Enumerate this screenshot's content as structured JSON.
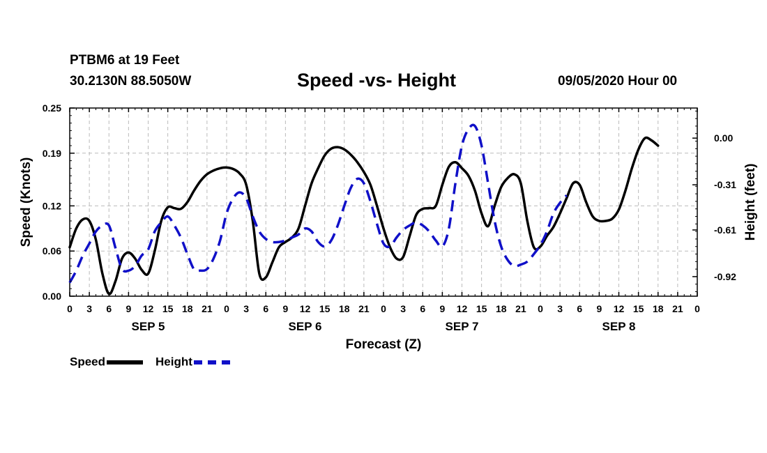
{
  "header": {
    "station": "PTBM6 at 19 Feet",
    "coords": "30.2130N 88.5050W",
    "title": "Speed -vs- Height",
    "datetime": "09/05/2020 Hour 00"
  },
  "legend": {
    "speed": "Speed",
    "height": "Height"
  },
  "colors": {
    "speed": "#000000",
    "height": "#1010c8",
    "grid": "#bbbbbb"
  },
  "chart_data": {
    "type": "line",
    "title": "Speed -vs- Height",
    "xlabel": "Forecast (Z)",
    "ylabel": "Speed (Knots)",
    "y2label": "Height (feet)",
    "xlim": [
      0,
      96
    ],
    "ylim": [
      0,
      0.25
    ],
    "y2lim": [
      -1.05,
      0.2
    ],
    "x_tick_hours": [
      0,
      3,
      6,
      9,
      12,
      15,
      18,
      21,
      24,
      27,
      30,
      33,
      36,
      39,
      42,
      45,
      48,
      51,
      54,
      57,
      60,
      63,
      66,
      69,
      72,
      75,
      78,
      81,
      84,
      87,
      90,
      93,
      96
    ],
    "x_tick_labels": [
      "0",
      "3",
      "6",
      "9",
      "12",
      "15",
      "18",
      "21",
      "0",
      "3",
      "6",
      "9",
      "12",
      "15",
      "18",
      "21",
      "0",
      "3",
      "6",
      "9",
      "12",
      "15",
      "18",
      "21",
      "0",
      "3",
      "6",
      "9",
      "12",
      "15",
      "18",
      "21",
      "0"
    ],
    "day_labels": [
      {
        "hour": 12,
        "label": "SEP 5"
      },
      {
        "hour": 36,
        "label": "SEP 6"
      },
      {
        "hour": 60,
        "label": "SEP 7"
      },
      {
        "hour": 84,
        "label": "SEP 8"
      }
    ],
    "y_ticks": [
      0.0,
      0.06,
      0.12,
      0.19,
      0.25
    ],
    "y_tick_labels": [
      "0.00",
      "0.06",
      "0.12",
      "0.19",
      "0.25"
    ],
    "y2_ticks": [
      0.0,
      -0.31,
      -0.61,
      -0.92
    ],
    "y2_tick_labels": [
      "0.00",
      "-0.31",
      "-0.61",
      "-0.92"
    ],
    "series": [
      {
        "name": "Speed",
        "axis": "left",
        "style": "solid",
        "points": [
          [
            0,
            0.065
          ],
          [
            1,
            0.09
          ],
          [
            2,
            0.102
          ],
          [
            3,
            0.1
          ],
          [
            4,
            0.075
          ],
          [
            5,
            0.03
          ],
          [
            6,
            0.003
          ],
          [
            7,
            0.02
          ],
          [
            8,
            0.05
          ],
          [
            9,
            0.058
          ],
          [
            10,
            0.05
          ],
          [
            11,
            0.035
          ],
          [
            12,
            0.03
          ],
          [
            13,
            0.06
          ],
          [
            14,
            0.1
          ],
          [
            15,
            0.118
          ],
          [
            16,
            0.117
          ],
          [
            17,
            0.116
          ],
          [
            18,
            0.125
          ],
          [
            19,
            0.14
          ],
          [
            20,
            0.153
          ],
          [
            21,
            0.162
          ],
          [
            22,
            0.167
          ],
          [
            23,
            0.17
          ],
          [
            24,
            0.171
          ],
          [
            25,
            0.169
          ],
          [
            26,
            0.163
          ],
          [
            27,
            0.148
          ],
          [
            28,
            0.1
          ],
          [
            29,
            0.03
          ],
          [
            30,
            0.025
          ],
          [
            31,
            0.045
          ],
          [
            32,
            0.065
          ],
          [
            33,
            0.072
          ],
          [
            34,
            0.078
          ],
          [
            35,
            0.09
          ],
          [
            36,
            0.12
          ],
          [
            37,
            0.15
          ],
          [
            38,
            0.17
          ],
          [
            39,
            0.187
          ],
          [
            40,
            0.196
          ],
          [
            41,
            0.198
          ],
          [
            42,
            0.195
          ],
          [
            43,
            0.188
          ],
          [
            44,
            0.178
          ],
          [
            45,
            0.165
          ],
          [
            46,
            0.148
          ],
          [
            47,
            0.12
          ],
          [
            48,
            0.09
          ],
          [
            49,
            0.065
          ],
          [
            50,
            0.05
          ],
          [
            51,
            0.052
          ],
          [
            52,
            0.08
          ],
          [
            53,
            0.108
          ],
          [
            54,
            0.116
          ],
          [
            55,
            0.117
          ],
          [
            56,
            0.12
          ],
          [
            57,
            0.148
          ],
          [
            58,
            0.172
          ],
          [
            59,
            0.178
          ],
          [
            60,
            0.17
          ],
          [
            61,
            0.16
          ],
          [
            62,
            0.14
          ],
          [
            63,
            0.11
          ],
          [
            64,
            0.093
          ],
          [
            65,
            0.12
          ],
          [
            66,
            0.145
          ],
          [
            67,
            0.157
          ],
          [
            68,
            0.162
          ],
          [
            69,
            0.15
          ],
          [
            70,
            0.1
          ],
          [
            71,
            0.065
          ],
          [
            72,
            0.066
          ],
          [
            73,
            0.08
          ],
          [
            74,
            0.092
          ],
          [
            75,
            0.11
          ],
          [
            76,
            0.13
          ],
          [
            77,
            0.15
          ],
          [
            78,
            0.148
          ],
          [
            79,
            0.125
          ],
          [
            80,
            0.106
          ],
          [
            81,
            0.1
          ],
          [
            82,
            0.1
          ],
          [
            83,
            0.103
          ],
          [
            84,
            0.115
          ],
          [
            85,
            0.14
          ],
          [
            86,
            0.17
          ],
          [
            87,
            0.195
          ],
          [
            88,
            0.21
          ],
          [
            89,
            0.207
          ],
          [
            90,
            0.2
          ]
        ]
      },
      {
        "name": "Height",
        "axis": "right",
        "style": "dashed",
        "points": [
          [
            0,
            -0.96
          ],
          [
            1,
            -0.88
          ],
          [
            2,
            -0.78
          ],
          [
            3,
            -0.7
          ],
          [
            4,
            -0.62
          ],
          [
            5,
            -0.58
          ],
          [
            6,
            -0.58
          ],
          [
            7,
            -0.73
          ],
          [
            8,
            -0.87
          ],
          [
            9,
            -0.88
          ],
          [
            10,
            -0.85
          ],
          [
            11,
            -0.78
          ],
          [
            12,
            -0.74
          ],
          [
            13,
            -0.62
          ],
          [
            14,
            -0.56
          ],
          [
            15,
            -0.52
          ],
          [
            16,
            -0.58
          ],
          [
            17,
            -0.66
          ],
          [
            18,
            -0.77
          ],
          [
            19,
            -0.87
          ],
          [
            20,
            -0.88
          ],
          [
            21,
            -0.87
          ],
          [
            22,
            -0.8
          ],
          [
            23,
            -0.68
          ],
          [
            24,
            -0.5
          ],
          [
            25,
            -0.4
          ],
          [
            26,
            -0.36
          ],
          [
            27,
            -0.4
          ],
          [
            28,
            -0.52
          ],
          [
            29,
            -0.62
          ],
          [
            30,
            -0.67
          ],
          [
            31,
            -0.69
          ],
          [
            32,
            -0.69
          ],
          [
            33,
            -0.68
          ],
          [
            34,
            -0.66
          ],
          [
            35,
            -0.64
          ],
          [
            36,
            -0.6
          ],
          [
            37,
            -0.62
          ],
          [
            38,
            -0.69
          ],
          [
            39,
            -0.72
          ],
          [
            40,
            -0.68
          ],
          [
            41,
            -0.58
          ],
          [
            42,
            -0.45
          ],
          [
            43,
            -0.33
          ],
          [
            44,
            -0.27
          ],
          [
            45,
            -0.3
          ],
          [
            46,
            -0.42
          ],
          [
            47,
            -0.57
          ],
          [
            48,
            -0.7
          ],
          [
            49,
            -0.72
          ],
          [
            50,
            -0.66
          ],
          [
            51,
            -0.61
          ],
          [
            52,
            -0.58
          ],
          [
            53,
            -0.56
          ],
          [
            54,
            -0.58
          ],
          [
            55,
            -0.62
          ],
          [
            56,
            -0.68
          ],
          [
            57,
            -0.72
          ],
          [
            58,
            -0.6
          ],
          [
            59,
            -0.3
          ],
          [
            60,
            -0.05
          ],
          [
            61,
            0.06
          ],
          [
            62,
            0.08
          ],
          [
            63,
            -0.05
          ],
          [
            64,
            -0.3
          ],
          [
            65,
            -0.55
          ],
          [
            66,
            -0.72
          ],
          [
            67,
            -0.81
          ],
          [
            68,
            -0.85
          ],
          [
            69,
            -0.84
          ],
          [
            70,
            -0.82
          ],
          [
            71,
            -0.77
          ],
          [
            72,
            -0.71
          ],
          [
            73,
            -0.62
          ],
          [
            74,
            -0.5
          ],
          [
            75,
            -0.43
          ],
          [
            76,
            -0.38
          ]
        ]
      }
    ]
  }
}
